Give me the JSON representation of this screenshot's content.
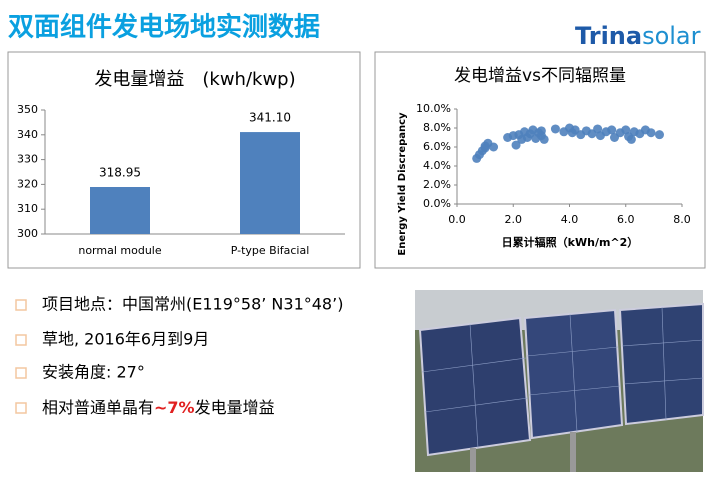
{
  "title": "双面组件发电场地实测数据",
  "logo": [
    "Trina",
    "solar"
  ],
  "chart_data": [
    {
      "type": "bar",
      "title": "发电量增益　(kwh/kwp)",
      "categories": [
        "normal module",
        "P-type Bifacial"
      ],
      "values": [
        318.95,
        341.1
      ],
      "value_labels": [
        "318.95",
        "341.10"
      ],
      "color": "#4f81bd",
      "ylim": [
        300,
        350
      ],
      "yticks": [
        300,
        310,
        320,
        330,
        340,
        350
      ],
      "grid": false
    },
    {
      "type": "scatter",
      "title": "发电增益vs不同辐照量",
      "x_label": "日累计辐照（kWh/m^2）",
      "y_label": "Energy Yield Discrepancy",
      "color": "#4f81bd",
      "x": [
        0.7,
        0.8,
        0.9,
        1.0,
        1.1,
        1.0,
        1.3,
        1.8,
        2.0,
        2.1,
        2.2,
        2.3,
        2.4,
        2.5,
        2.6,
        2.7,
        2.8,
        2.9,
        3.0,
        3.1,
        3.0,
        3.5,
        3.8,
        4.0,
        4.1,
        4.2,
        4.4,
        4.6,
        4.8,
        5.0,
        5.1,
        5.3,
        5.5,
        5.6,
        5.8,
        6.0,
        6.1,
        6.2,
        6.3,
        6.5,
        6.7,
        6.9,
        7.2
      ],
      "values": [
        4.8,
        5.2,
        5.6,
        5.9,
        6.4,
        6.1,
        6.0,
        7.0,
        7.2,
        6.2,
        7.3,
        6.8,
        7.6,
        7.0,
        7.4,
        7.8,
        6.9,
        7.5,
        7.7,
        6.8,
        7.2,
        7.9,
        7.6,
        8.0,
        7.5,
        7.8,
        7.3,
        7.7,
        7.4,
        7.9,
        7.2,
        7.6,
        7.8,
        7.0,
        7.5,
        7.8,
        7.1,
        6.8,
        7.6,
        7.4,
        7.8,
        7.5,
        7.3
      ],
      "xlim": [
        0,
        8
      ],
      "xticks": [
        {
          "value": 0,
          "label": "0.0"
        },
        {
          "value": 2,
          "label": "2.0"
        },
        {
          "value": 4,
          "label": "4.0"
        },
        {
          "value": 6,
          "label": "6.0"
        },
        {
          "value": 8,
          "label": "8.0"
        }
      ],
      "ylim": [
        0,
        10
      ],
      "yticks": [
        {
          "value": 0,
          "label": "0.0%"
        },
        {
          "value": 2,
          "label": "2.0%"
        },
        {
          "value": 4,
          "label": "4.0%"
        },
        {
          "value": 6,
          "label": "6.0%"
        },
        {
          "value": 8,
          "label": "8.0%"
        },
        {
          "value": 10,
          "label": "10.0%"
        }
      ]
    }
  ],
  "bullets": [
    "项目地点：中国常州(E119°58’ N31°48’)",
    "草地, 2016年6月到9月",
    "安装角度: 27°",
    [
      "相对普通单晶有",
      "~7%",
      "发电量增益"
    ]
  ]
}
